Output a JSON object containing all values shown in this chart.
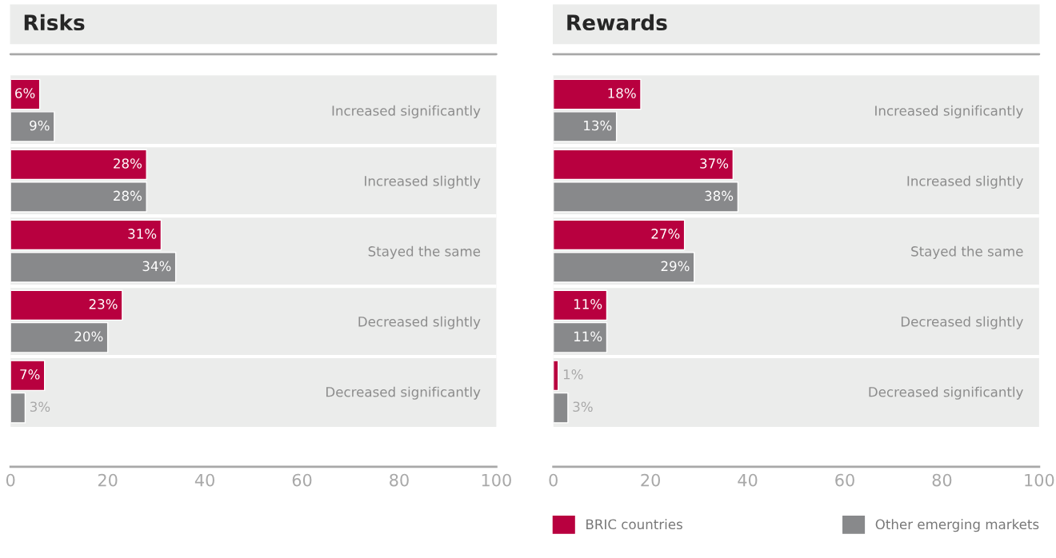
{
  "chart_data": [
    {
      "type": "bar",
      "orientation": "horizontal",
      "title": "Risks",
      "categories": [
        "Increased significantly",
        "Increased slightly",
        "Stayed the same",
        "Decreased slightly",
        "Decreased significantly"
      ],
      "series": [
        {
          "color": "#b8003f",
          "values": [
            6,
            28,
            31,
            23,
            7
          ],
          "value_labels": [
            "6%",
            "28%",
            "31%",
            "23%",
            "7%"
          ]
        },
        {
          "color": "#88898b",
          "values": [
            9,
            28,
            34,
            20,
            3
          ],
          "value_labels": [
            "9%",
            "28%",
            "34%",
            "20%",
            "3%"
          ]
        }
      ],
      "xlim": [
        0,
        100
      ],
      "xticks": [
        0,
        20,
        40,
        60,
        80,
        100
      ],
      "grid": false,
      "legend": false
    },
    {
      "type": "bar",
      "orientation": "horizontal",
      "title": "Rewards",
      "categories": [
        "Increased significantly",
        "Increased slightly",
        "Stayed the same",
        "Decreased slightly",
        "Decreased significantly"
      ],
      "series": [
        {
          "name": "BRIC countries",
          "color": "#b8003f",
          "values": [
            18,
            37,
            27,
            11,
            1
          ],
          "value_labels": [
            "18%",
            "37%",
            "27%",
            "11%",
            "1%"
          ]
        },
        {
          "name": "Other emerging markets",
          "color": "#88898b",
          "values": [
            13,
            38,
            29,
            11,
            3
          ],
          "value_labels": [
            "13%",
            "38%",
            "29%",
            "11%",
            "3%"
          ]
        }
      ],
      "xlim": [
        0,
        100
      ],
      "xticks": [
        0,
        20,
        40,
        60,
        80,
        100
      ],
      "grid": false,
      "legend": "bottom"
    }
  ]
}
